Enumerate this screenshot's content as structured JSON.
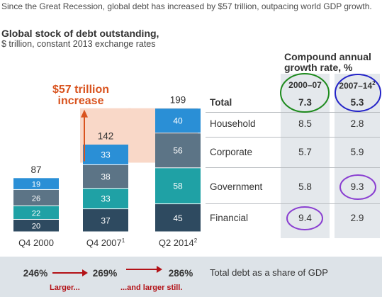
{
  "header_note": "Since the Great Recession, global debt has increased by $57 trillion, outpacing world GDP growth.",
  "title": "Global stock of debt outstanding,",
  "subtitle": "$ trillion, constant 2013 exchange rates",
  "increase_annotation": {
    "line1": "$57 trillion",
    "line2": "increase"
  },
  "chart_data": {
    "type": "bar",
    "stacked": true,
    "categories": [
      "Q4 2000",
      "Q4 2007",
      "Q2 2014"
    ],
    "category_superscripts": [
      "",
      "1",
      "2"
    ],
    "totals": [
      87,
      142,
      199
    ],
    "series": [
      {
        "name": "Financial",
        "values": [
          20,
          37,
          45
        ],
        "color": "#2e4a60"
      },
      {
        "name": "Government",
        "values": [
          22,
          33,
          58
        ],
        "color": "#1fa1a5"
      },
      {
        "name": "Corporate",
        "values": [
          26,
          38,
          56
        ],
        "color": "#5c7486"
      },
      {
        "name": "Household",
        "values": [
          19,
          33,
          40
        ],
        "color": "#2a8fd6"
      }
    ],
    "highlight_color": "#f9d8c8",
    "arrow_color": "#d9531e"
  },
  "table": {
    "title_line1": "Compound annual",
    "title_line2": "growth rate, %",
    "columns": [
      {
        "label": "2000–07",
        "sup": ""
      },
      {
        "label": "2007–14",
        "sup": "2"
      }
    ],
    "rows": [
      {
        "label": "Total",
        "values": [
          "7.3",
          "5.3"
        ],
        "bold": true
      },
      {
        "label": "Household",
        "values": [
          "8.5",
          "2.8"
        ]
      },
      {
        "label": "Corporate",
        "values": [
          "5.7",
          "5.9"
        ]
      },
      {
        "label": "Government",
        "values": [
          "5.8",
          "9.3"
        ]
      },
      {
        "label": "Financial",
        "values": [
          "9.4",
          "2.9"
        ]
      }
    ],
    "circle_colors": {
      "green": "#1e8b1e",
      "blue": "#2424c8",
      "purple": "#8a3fd1"
    }
  },
  "footer": {
    "shares": [
      "246%",
      "269%",
      "286%"
    ],
    "label": "Total debt as a share of GDP",
    "annot1": "Larger...",
    "annot2": "...and larger still.",
    "arrow_color": "#b31217",
    "band_color": "#dde3e8"
  }
}
